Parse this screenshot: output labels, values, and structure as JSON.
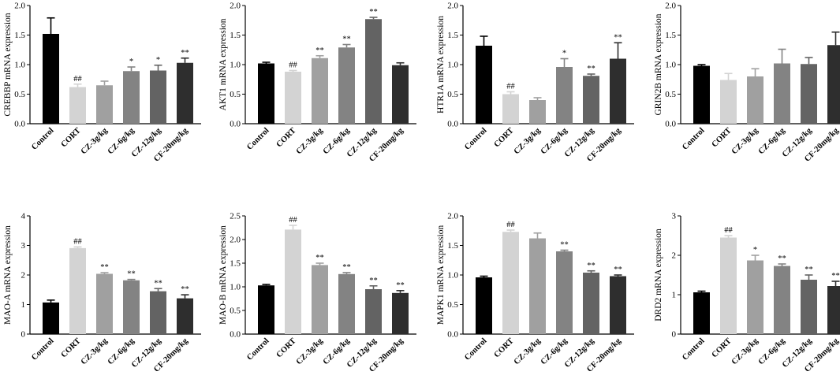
{
  "chart_data": [
    {
      "type": "bar",
      "ylabel": "CREBBP mRNA expression",
      "ylim": [
        0,
        2.0
      ],
      "yticks": [
        "0.0",
        "0.5",
        "1.0",
        "1.5",
        "2.0"
      ],
      "categories": [
        "Control",
        "CORT",
        "CZ-3g/kg",
        "CZ-6g/kg",
        "CZ-12g/kg",
        "CF-20mg/kg"
      ],
      "values": [
        1.52,
        0.62,
        0.65,
        0.89,
        0.9,
        1.03
      ],
      "errors": [
        0.27,
        0.05,
        0.07,
        0.07,
        0.09,
        0.08
      ],
      "labels": [
        "",
        "##",
        "",
        "*",
        "*",
        "**"
      ]
    },
    {
      "type": "bar",
      "ylabel": "AKT1 mRNA expression",
      "ylim": [
        0,
        2.0
      ],
      "yticks": [
        "0.0",
        "0.5",
        "1.0",
        "1.5",
        "2.0"
      ],
      "categories": [
        "Control",
        "CORT",
        "CZ-3g/kg",
        "CZ-6g/kg",
        "CZ-12g/kg",
        "CF-20mg/kg"
      ],
      "values": [
        1.02,
        0.88,
        1.11,
        1.29,
        1.77,
        0.99
      ],
      "errors": [
        0.02,
        0.02,
        0.04,
        0.05,
        0.03,
        0.04
      ],
      "labels": [
        "",
        "##",
        "**",
        "**",
        "**",
        ""
      ]
    },
    {
      "type": "bar",
      "ylabel": "HTR1A mRNA expression",
      "ylim": [
        0,
        2.0
      ],
      "yticks": [
        "0.0",
        "0.5",
        "1.0",
        "1.5",
        "2.0"
      ],
      "categories": [
        "Control",
        "CORT",
        "CZ-3g/kg",
        "CZ-6g/kg",
        "CZ-12g/kg",
        "CF-20mg/kg"
      ],
      "values": [
        1.32,
        0.5,
        0.4,
        0.96,
        0.81,
        1.1
      ],
      "errors": [
        0.16,
        0.04,
        0.04,
        0.14,
        0.03,
        0.27
      ],
      "labels": [
        "",
        "##",
        "",
        "*",
        "**",
        "**"
      ]
    },
    {
      "type": "bar",
      "ylabel": "GRIN2B mRNA expression",
      "ylim": [
        0,
        2.0
      ],
      "yticks": [
        "0.0",
        "0.5",
        "1.0",
        "1.5",
        "2.0"
      ],
      "categories": [
        "Control",
        "CORT",
        "CZ-3g/kg",
        "CZ-6g/kg",
        "CZ-12g/kg",
        "CF-20mg/kg"
      ],
      "values": [
        0.98,
        0.74,
        0.8,
        1.02,
        1.01,
        1.33
      ],
      "errors": [
        0.02,
        0.11,
        0.13,
        0.24,
        0.11,
        0.22
      ],
      "labels": [
        "",
        "",
        "",
        "",
        "",
        ""
      ]
    },
    {
      "type": "bar",
      "ylabel": "MAO-A mRNA expression",
      "ylim": [
        0,
        4
      ],
      "yticks": [
        "0",
        "1",
        "2",
        "3",
        "4"
      ],
      "categories": [
        "Control",
        "CORT",
        "CZ-3g/kg",
        "CZ-6g/kg",
        "CZ-12g/kg",
        "CF-20mg/kg"
      ],
      "values": [
        1.07,
        2.91,
        2.04,
        1.82,
        1.45,
        1.21
      ],
      "errors": [
        0.08,
        0.04,
        0.04,
        0.03,
        0.09,
        0.12
      ],
      "labels": [
        "",
        "##",
        "**",
        "**",
        "**",
        "**"
      ]
    },
    {
      "type": "bar",
      "ylabel": "MAO-B mRNA expression",
      "ylim": [
        0,
        2.5
      ],
      "yticks": [
        "0.0",
        "0.5",
        "1.0",
        "1.5",
        "2.0",
        "2.5"
      ],
      "categories": [
        "Control",
        "CORT",
        "CZ-3g/kg",
        "CZ-6g/kg",
        "CZ-12g/kg",
        "CF-20mg/kg"
      ],
      "values": [
        1.03,
        2.21,
        1.46,
        1.27,
        0.95,
        0.87
      ],
      "errors": [
        0.02,
        0.09,
        0.04,
        0.03,
        0.07,
        0.05
      ],
      "labels": [
        "",
        "##",
        "**",
        "**",
        "**",
        "**"
      ]
    },
    {
      "type": "bar",
      "ylabel": "MAPK1 mRNA expression",
      "ylim": [
        0,
        2.0
      ],
      "yticks": [
        "0.0",
        "0.5",
        "1.0",
        "1.5",
        "2.0"
      ],
      "categories": [
        "Control",
        "CORT",
        "CZ-3g/kg",
        "CZ-6g/kg",
        "CZ-12g/kg",
        "CF-20mg/kg"
      ],
      "values": [
        0.96,
        1.73,
        1.62,
        1.4,
        1.04,
        0.98
      ],
      "errors": [
        0.02,
        0.03,
        0.09,
        0.02,
        0.03,
        0.02
      ],
      "labels": [
        "",
        "##",
        "",
        "**",
        "**",
        "**"
      ]
    },
    {
      "type": "bar",
      "ylabel": "DRD2 mRNA expression",
      "ylim": [
        0,
        3
      ],
      "yticks": [
        "0",
        "1",
        "2",
        "3"
      ],
      "categories": [
        "Control",
        "CORT",
        "CZ-3g/kg",
        "CZ-6g/kg",
        "CZ-12g/kg",
        "CF-20mg/kg"
      ],
      "values": [
        1.06,
        2.45,
        1.87,
        1.73,
        1.38,
        1.22
      ],
      "errors": [
        0.03,
        0.05,
        0.13,
        0.05,
        0.12,
        0.12
      ],
      "labels": [
        "",
        "##",
        "*",
        "**",
        "**",
        "**"
      ]
    }
  ],
  "style": {
    "bar_colors": [
      "#000000",
      "#d3d3d3",
      "#a0a0a0",
      "#838383",
      "#636363",
      "#2e2e2e"
    ],
    "axis_color": "#000000"
  }
}
